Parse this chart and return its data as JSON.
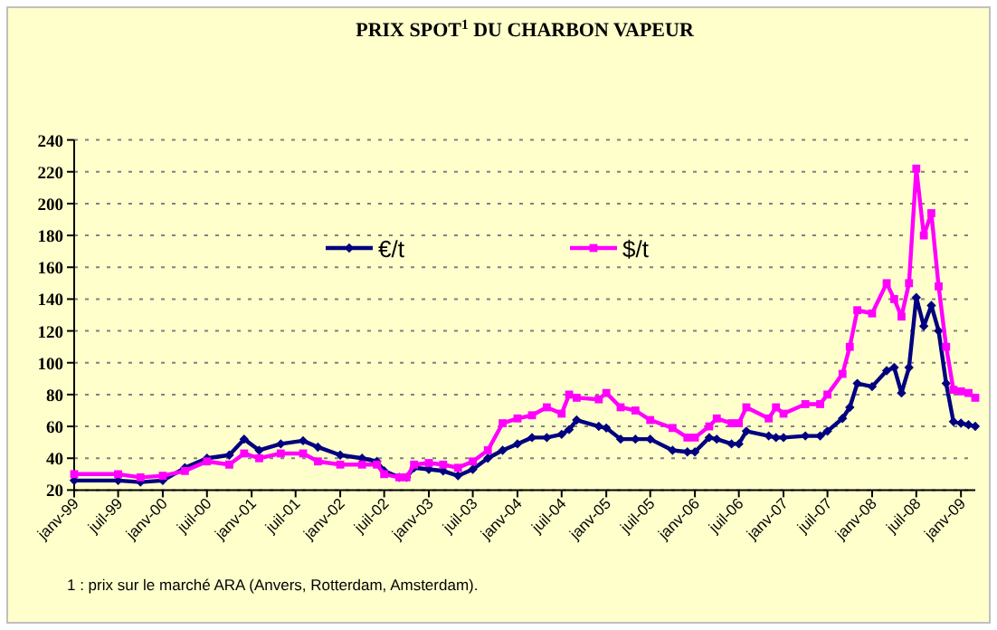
{
  "chart_data": {
    "type": "line",
    "title": "PRIX SPOT$^{1}$ DU CHARBON VAPEUR",
    "annotations": [
      "1 : prix sur le marché ARA (Anvers, Rotterdam, Amsterdam)."
    ],
    "x": [
      "1999-01",
      "1999-07",
      "1999-10",
      "2000-01",
      "2000-04",
      "2000-07",
      "2000-10",
      "2000-12",
      "2001-02",
      "2001-05",
      "2001-08",
      "2001-10",
      "2002-01",
      "2002-04",
      "2002-06",
      "2002-07",
      "2002-09",
      "2002-10",
      "2002-11",
      "2003-01",
      "2003-03",
      "2003-05",
      "2003-07",
      "2003-09",
      "2003-11",
      "2004-01",
      "2004-03",
      "2004-05",
      "2004-07",
      "2004-08",
      "2004-09",
      "2004-12",
      "2005-01",
      "2005-03",
      "2005-05",
      "2005-07",
      "2005-10",
      "2005-12",
      "2006-01",
      "2006-03",
      "2006-04",
      "2006-06",
      "2006-07",
      "2006-08",
      "2006-11",
      "2006-12",
      "2007-01",
      "2007-04",
      "2007-06",
      "2007-07",
      "2007-09",
      "2007-10",
      "2007-11",
      "2008-01",
      "2008-03",
      "2008-04",
      "2008-05",
      "2008-06",
      "2008-07",
      "2008-08",
      "2008-09",
      "2008-10",
      "2008-11",
      "2008-12",
      "2009-01",
      "2009-02",
      "2009-03"
    ],
    "series": [
      {
        "name": "€/t",
        "color": "#000080",
        "marker": "diamond",
        "values": [
          26,
          26,
          25,
          26,
          34,
          40,
          42,
          52,
          45,
          49,
          51,
          47,
          42,
          40,
          38,
          32,
          28,
          28,
          34,
          33,
          32,
          29,
          33,
          40,
          45,
          49,
          53,
          53,
          55,
          58,
          64,
          60,
          59,
          52,
          52,
          52,
          45,
          44,
          44,
          53,
          52,
          49,
          49,
          57,
          54,
          53,
          53,
          54,
          54,
          57,
          65,
          72,
          87,
          85,
          95,
          97,
          81,
          97,
          141,
          123,
          136,
          120,
          87,
          63,
          62,
          61,
          60
        ]
      },
      {
        "name": "$/t",
        "color": "#ff00ff",
        "marker": "square",
        "values": [
          30,
          30,
          28,
          29,
          32,
          38,
          36,
          43,
          40,
          43,
          43,
          38,
          36,
          36,
          36,
          30,
          28,
          28,
          36,
          37,
          36,
          34,
          38,
          45,
          62,
          65,
          67,
          72,
          68,
          80,
          78,
          77,
          81,
          72,
          70,
          64,
          59,
          53,
          53,
          60,
          65,
          62,
          62,
          72,
          65,
          72,
          68,
          74,
          74,
          80,
          93,
          110,
          133,
          131,
          150,
          140,
          129,
          150,
          222,
          180,
          194,
          148,
          110,
          83,
          82,
          81,
          78
        ]
      }
    ],
    "xlim": [
      "1999-01",
      "2009-03"
    ],
    "xticks": [
      {
        "value": "1999-01",
        "label": "janv-99"
      },
      {
        "value": "1999-07",
        "label": "juil-99"
      },
      {
        "value": "2000-01",
        "label": "janv-00"
      },
      {
        "value": "2000-07",
        "label": "juil-00"
      },
      {
        "value": "2001-01",
        "label": "janv-01"
      },
      {
        "value": "2001-07",
        "label": "juil-01"
      },
      {
        "value": "2002-01",
        "label": "janv-02"
      },
      {
        "value": "2002-07",
        "label": "juil-02"
      },
      {
        "value": "2003-01",
        "label": "janv-03"
      },
      {
        "value": "2003-07",
        "label": "juil-03"
      },
      {
        "value": "2004-01",
        "label": "janv-04"
      },
      {
        "value": "2004-07",
        "label": "juil-04"
      },
      {
        "value": "2005-01",
        "label": "janv-05"
      },
      {
        "value": "2005-07",
        "label": "juil-05"
      },
      {
        "value": "2006-01",
        "label": "janv-06"
      },
      {
        "value": "2006-07",
        "label": "juil-06"
      },
      {
        "value": "2007-01",
        "label": "janv-07"
      },
      {
        "value": "2007-07",
        "label": "juil-07"
      },
      {
        "value": "2008-01",
        "label": "janv-08"
      },
      {
        "value": "2008-07",
        "label": "juil-08"
      },
      {
        "value": "2009-01",
        "label": "janv-09"
      }
    ],
    "ylim": [
      20,
      240
    ],
    "yticks": [
      20,
      40,
      60,
      80,
      100,
      120,
      140,
      160,
      180,
      200,
      220,
      240
    ],
    "grid": "y",
    "legend": "top",
    "line_style": "solid"
  }
}
